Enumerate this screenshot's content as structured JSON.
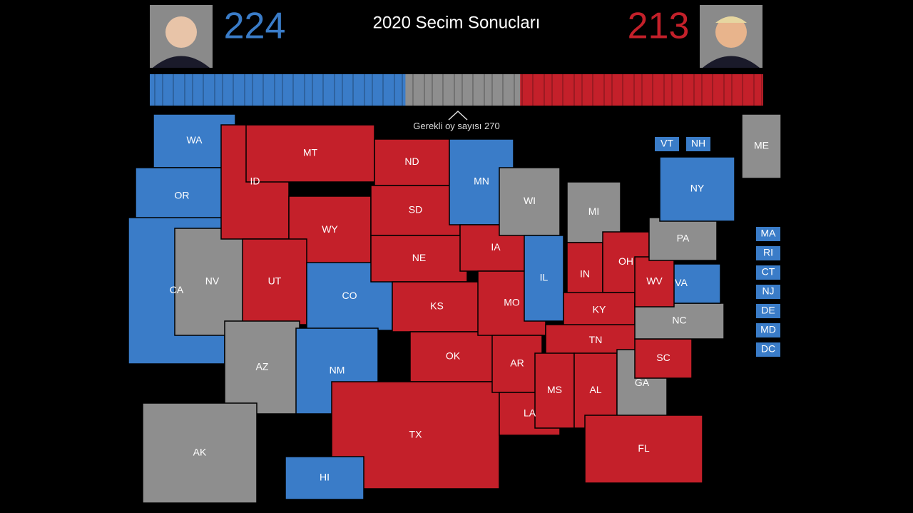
{
  "header": {
    "title": "2020 Secim Sonucları",
    "left_score": 224,
    "right_score": 213,
    "left_color": "#3a7cc8",
    "right_color": "#c4202a",
    "undecided_color": "#8e8e8e"
  },
  "threshold": {
    "label": "Gerekli oy sayısı",
    "value": 270
  },
  "states": [
    {
      "label": "WA",
      "color": "#3a7cc8"
    },
    {
      "label": "OR",
      "color": "#3a7cc8"
    },
    {
      "label": "CA",
      "color": "#3a7cc8"
    },
    {
      "label": "NV",
      "color": "#8e8e8e"
    },
    {
      "label": "ID",
      "color": "#c4202a"
    },
    {
      "label": "MT",
      "color": "#c4202a"
    },
    {
      "label": "WY",
      "color": "#c4202a"
    },
    {
      "label": "UT",
      "color": "#c4202a"
    },
    {
      "label": "CO",
      "color": "#3a7cc8"
    },
    {
      "label": "AZ",
      "color": "#8e8e8e"
    },
    {
      "label": "NM",
      "color": "#3a7cc8"
    },
    {
      "label": "ND",
      "color": "#c4202a"
    },
    {
      "label": "SD",
      "color": "#c4202a"
    },
    {
      "label": "NE",
      "color": "#c4202a"
    },
    {
      "label": "KS",
      "color": "#c4202a"
    },
    {
      "label": "OK",
      "color": "#c4202a"
    },
    {
      "label": "TX",
      "color": "#c4202a"
    },
    {
      "label": "MN",
      "color": "#3a7cc8"
    },
    {
      "label": "IA",
      "color": "#c4202a"
    },
    {
      "label": "MO",
      "color": "#c4202a"
    },
    {
      "label": "AR",
      "color": "#c4202a"
    },
    {
      "label": "LA",
      "color": "#c4202a"
    },
    {
      "label": "WI",
      "color": "#8e8e8e"
    },
    {
      "label": "IL",
      "color": "#3a7cc8"
    },
    {
      "label": "MI",
      "color": "#8e8e8e"
    },
    {
      "label": "IN",
      "color": "#c4202a"
    },
    {
      "label": "OH",
      "color": "#c4202a"
    },
    {
      "label": "KY",
      "color": "#c4202a"
    },
    {
      "label": "TN",
      "color": "#c4202a"
    },
    {
      "label": "MS",
      "color": "#c4202a"
    },
    {
      "label": "AL",
      "color": "#c4202a"
    },
    {
      "label": "GA",
      "color": "#8e8e8e"
    },
    {
      "label": "FL",
      "color": "#c4202a"
    },
    {
      "label": "SC",
      "color": "#c4202a"
    },
    {
      "label": "NC",
      "color": "#8e8e8e"
    },
    {
      "label": "VA",
      "color": "#3a7cc8"
    },
    {
      "label": "WV",
      "color": "#c4202a"
    },
    {
      "label": "PA",
      "color": "#8e8e8e"
    },
    {
      "label": "NY",
      "color": "#3a7cc8"
    },
    {
      "label": "ME",
      "color": "#8e8e8e"
    },
    {
      "label": "AK",
      "color": "#8e8e8e"
    },
    {
      "label": "HI",
      "color": "#3a7cc8"
    }
  ],
  "small_states": [
    {
      "label": "VT",
      "color": "#3a7cc8"
    },
    {
      "label": "NH",
      "color": "#3a7cc8"
    },
    {
      "label": "MA",
      "color": "#3a7cc8"
    },
    {
      "label": "RI",
      "color": "#3a7cc8"
    },
    {
      "label": "CT",
      "color": "#3a7cc8"
    },
    {
      "label": "NJ",
      "color": "#3a7cc8"
    },
    {
      "label": "DE",
      "color": "#3a7cc8"
    },
    {
      "label": "MD",
      "color": "#3a7cc8"
    },
    {
      "label": "DC",
      "color": "#3a7cc8"
    }
  ]
}
